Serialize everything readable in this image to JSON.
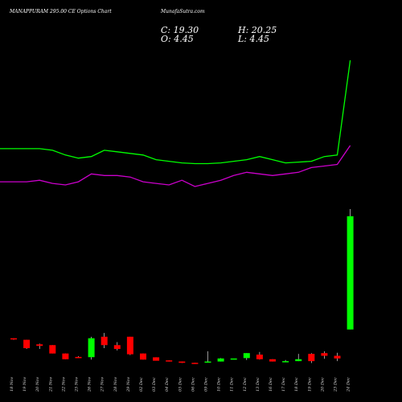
{
  "header": {
    "symbol": "MANAPPURAM 295.00 CE Options Chart",
    "source": "MunafaSutra.com"
  },
  "ohlc": {
    "C": "19.30",
    "H": "20.25",
    "O": "4.45",
    "L": "4.45"
  },
  "colors": {
    "up": "#00ff00",
    "down": "#ff0000",
    "upper_line": "#00ff00",
    "lower_line": "#cc00cc",
    "background": "#000000",
    "wick": "#ffffff"
  },
  "chart_data": {
    "type": "candlestick",
    "title": "MANAPPURAM 295.00 CE Options Chart MunafaSutra.com",
    "categories": [
      "18 Nov",
      "19 Nov",
      "20 Nov",
      "21 Nov",
      "22 Nov",
      "25 Nov",
      "26 Nov",
      "27 Nov",
      "28 Nov",
      "29 Nov",
      "02 Dec",
      "03 Dec",
      "04 Dec",
      "05 Dec",
      "06 Dec",
      "09 Dec",
      "10 Dec",
      "11 Dec",
      "12 Dec",
      "13 Dec",
      "16 Dec",
      "17 Dec",
      "18 Dec",
      "19 Dec",
      "20 Dec",
      "23 Dec",
      "24 Dec"
    ],
    "series": [
      {
        "name": "candles",
        "open": [
          3.3,
          3.1,
          2.5,
          2.4,
          1.3,
          0.85,
          0.82,
          3.5,
          2.4,
          3.5,
          1.3,
          0.8,
          0.4,
          0.25,
          0.08,
          0.1,
          0.25,
          0.65,
          0.7,
          1.15,
          0.55,
          0.25,
          0.3,
          1.25,
          1.35,
          1.0,
          4.45
        ],
        "high": [
          3.3,
          3.1,
          2.6,
          2.4,
          1.3,
          0.95,
          3.5,
          4.0,
          2.8,
          3.5,
          1.3,
          0.8,
          0.4,
          0.25,
          0.08,
          1.6,
          0.7,
          0.65,
          1.35,
          1.5,
          0.55,
          0.45,
          1.25,
          1.35,
          1.6,
          1.4,
          20.25
        ],
        "low": [
          3.1,
          1.9,
          1.9,
          1.3,
          0.55,
          0.75,
          0.5,
          2.0,
          1.7,
          1.1,
          0.5,
          0.4,
          0.25,
          0.06,
          0.0,
          0.1,
          0.25,
          0.65,
          0.45,
          0.5,
          0.25,
          0.2,
          0.3,
          0.05,
          0.6,
          0.3,
          4.45
        ],
        "close": [
          3.2,
          2.0,
          2.3,
          1.3,
          0.55,
          0.75,
          3.3,
          2.4,
          1.9,
          1.2,
          0.5,
          0.35,
          0.25,
          0.08,
          0.0,
          0.25,
          0.65,
          0.65,
          1.35,
          0.55,
          0.25,
          0.3,
          0.55,
          0.3,
          1.0,
          0.65,
          19.3
        ]
      },
      {
        "name": "upper",
        "values": [
          0.84,
          0.84,
          0.84,
          0.83,
          0.8,
          0.78,
          0.79,
          0.83,
          0.82,
          0.81,
          0.8,
          0.77,
          0.76,
          0.75,
          0.745,
          0.745,
          0.75,
          0.76,
          0.77,
          0.79,
          0.77,
          0.75,
          0.755,
          0.76,
          0.79,
          0.8,
          1.4
        ]
      },
      {
        "name": "lower",
        "values": [
          0.63,
          0.63,
          0.64,
          0.62,
          0.61,
          0.63,
          0.68,
          0.67,
          0.67,
          0.66,
          0.63,
          0.62,
          0.61,
          0.64,
          0.6,
          0.62,
          0.64,
          0.67,
          0.69,
          0.68,
          0.67,
          0.68,
          0.69,
          0.72,
          0.73,
          0.74,
          0.86
        ]
      }
    ]
  }
}
